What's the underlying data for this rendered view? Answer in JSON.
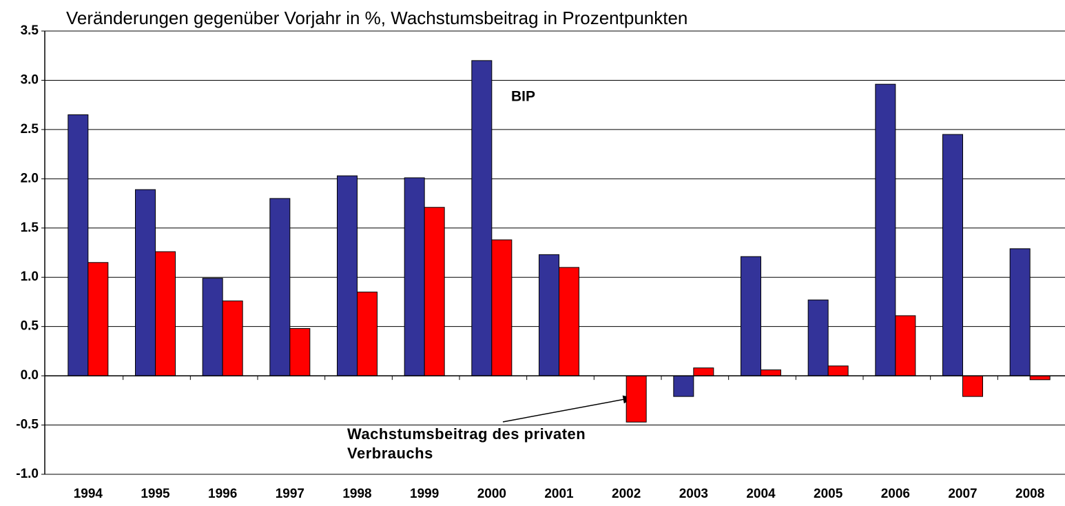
{
  "chart_data": {
    "type": "bar",
    "title": "Veränderungen gegenüber Vorjahr in %, Wachstumsbeitrag in Prozentpunkten",
    "categories": [
      "1994",
      "1995",
      "1996",
      "1997",
      "1998",
      "1999",
      "2000",
      "2001",
      "2002",
      "2003",
      "2004",
      "2005",
      "2006",
      "2007",
      "2008"
    ],
    "series": [
      {
        "name": "BIP",
        "color": "#333399",
        "values": [
          2.65,
          1.89,
          0.99,
          1.8,
          2.03,
          2.01,
          3.2,
          1.23,
          0,
          -0.21,
          1.21,
          0.77,
          2.96,
          2.45,
          1.29
        ]
      },
      {
        "name": "Wachstumsbeitrag des privaten Verbrauchs",
        "color": "#ff0000",
        "values": [
          1.15,
          1.26,
          0.76,
          0.48,
          0.85,
          1.71,
          1.38,
          1.1,
          -0.47,
          0.08,
          0.06,
          0.1,
          0.61,
          -0.21,
          -0.04
        ]
      }
    ],
    "ylim": [
      -1.0,
      3.5
    ],
    "yticks": [
      {
        "value": -1.0,
        "label": "-1.0"
      },
      -0.5,
      {
        "value": 0,
        "label": "0.0"
      },
      0.5,
      {
        "value": 1.0,
        "label": "1.0"
      },
      1.5,
      {
        "value": 2.0,
        "label": "2.0"
      },
      2.5,
      {
        "value": 3.0,
        "label": "3.0"
      },
      3.5
    ],
    "grid": true
  }
}
